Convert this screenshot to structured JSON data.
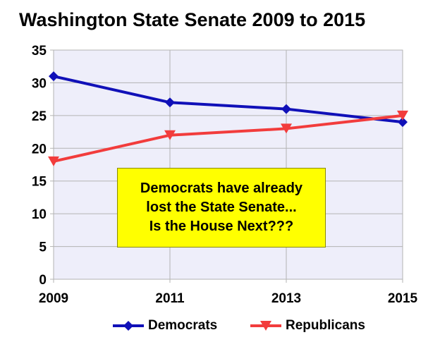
{
  "chart_data": {
    "type": "line",
    "title": "Washington State Senate 2009 to 2015",
    "xlabel": "",
    "ylabel": "",
    "categories": [
      "2009",
      "2011",
      "2013",
      "2015"
    ],
    "ylim": [
      0,
      35
    ],
    "yticks": [
      "0",
      "5",
      "10",
      "15",
      "20",
      "25",
      "30",
      "35"
    ],
    "grid": true,
    "plot_background": "#eeeefa",
    "legend_position": "bottom",
    "series": [
      {
        "name": "Democrats",
        "values": [
          31,
          27,
          26,
          24
        ],
        "color": "#1010b8",
        "marker": "diamond"
      },
      {
        "name": "Republicans",
        "values": [
          18,
          22,
          23,
          25
        ],
        "color": "#f23c3c",
        "marker": "triangle-down"
      }
    ],
    "annotation": {
      "lines": [
        "Democrats have already",
        "lost the State Senate...",
        "Is the House Next???"
      ],
      "background": "#ffff00"
    }
  }
}
